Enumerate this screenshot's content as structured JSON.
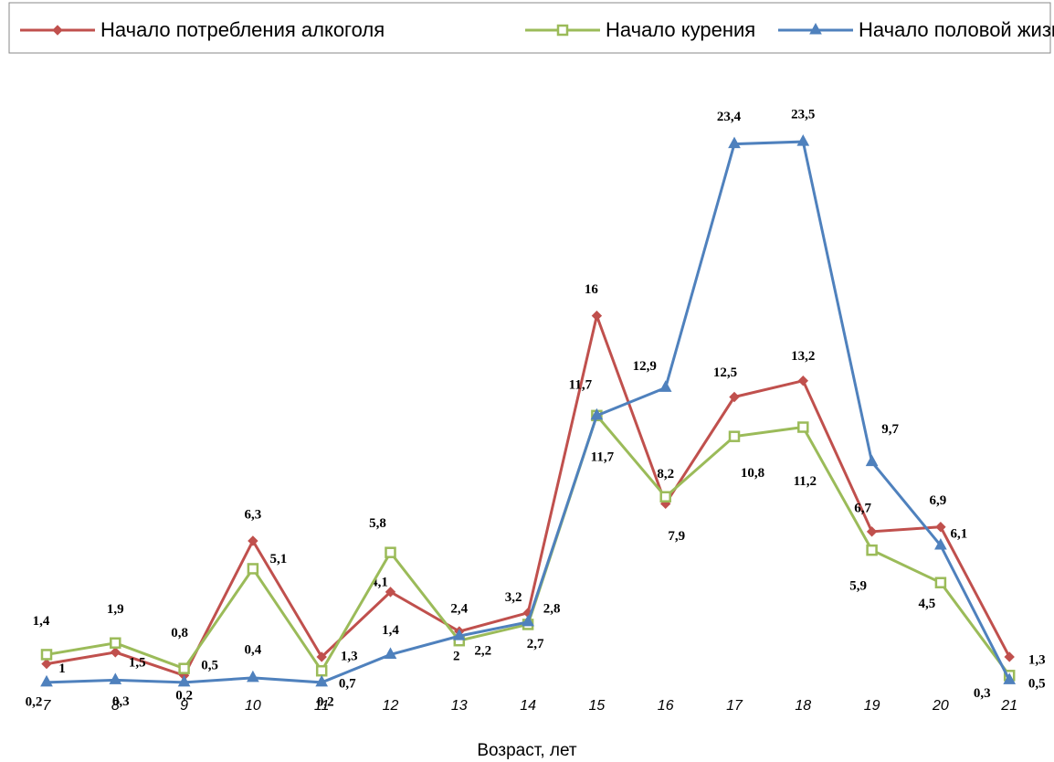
{
  "chart_data": {
    "type": "line",
    "x_label": "Возраст, лет",
    "categories": [
      "7",
      "8",
      "9",
      "10",
      "11",
      "12",
      "13",
      "14",
      "15",
      "16",
      "17",
      "18",
      "19",
      "20",
      "21"
    ],
    "ylim": [
      0,
      25
    ],
    "series": [
      {
        "name": "Начало потребления алкоголя",
        "color": "#c0504d",
        "marker": "diamond",
        "values": [
          1,
          1.5,
          0.5,
          6.3,
          1.3,
          4.1,
          2.4,
          3.2,
          16,
          7.9,
          12.5,
          13.2,
          6.7,
          6.9,
          1.3
        ],
        "value_labels": [
          "1",
          "1,5",
          "0,5",
          "6,3",
          "1,3",
          "4,1",
          "2,4",
          "3,2",
          "16",
          "7,9",
          "12,5",
          "13,2",
          "6,7",
          "6,9",
          "1,3"
        ]
      },
      {
        "name": "Начало курения",
        "color": "#9bbb59",
        "marker": "square",
        "values": [
          1.4,
          1.9,
          0.8,
          5.1,
          0.7,
          5.8,
          2,
          2.7,
          11.7,
          8.2,
          10.8,
          11.2,
          5.9,
          4.5,
          0.5
        ],
        "value_labels": [
          "1,4",
          "1,9",
          "0,8",
          "5,1",
          "0,7",
          "5,8",
          "2",
          "2,7",
          "11,7",
          "8,2",
          "10,8",
          "11,2",
          "5,9",
          "4,5",
          "0,5"
        ]
      },
      {
        "name": "Начало половой жизни",
        "color": "#4f81bd",
        "marker": "triangle",
        "values": [
          0.2,
          0.3,
          0.2,
          0.4,
          0.2,
          1.4,
          2.2,
          2.8,
          11.7,
          12.9,
          23.4,
          23.5,
          9.7,
          6.1,
          0.3
        ],
        "value_labels": [
          "0,2",
          "0,3",
          "0,2",
          "0,4",
          "0,2",
          "1,4",
          "2,2",
          "2,8",
          "11,7",
          "12,9",
          "23,4",
          "23,5",
          "9,7",
          "6,1",
          "0,3"
        ]
      }
    ]
  }
}
